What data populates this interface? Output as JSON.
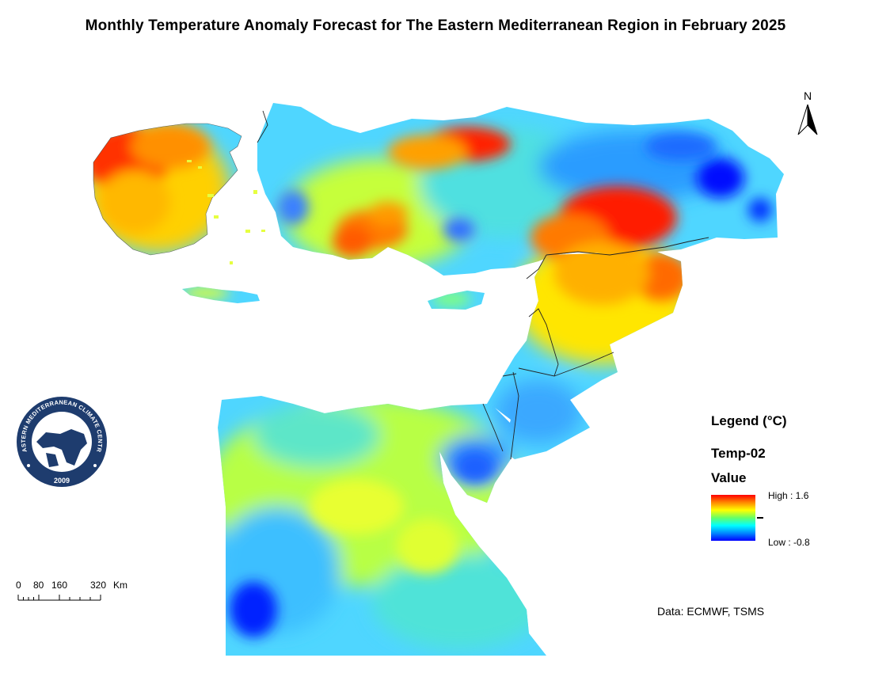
{
  "title": "Monthly Temperature Anomaly Forecast  for The Eastern Mediterranean Region in February 2025",
  "north_arrow": {
    "label": "N",
    "icon": "north-arrow-icon"
  },
  "logo": {
    "text": "EASTERN MEDITERRANEAN CLIMATE CENTRE",
    "year": "2009",
    "icon": "emcc-logo-icon"
  },
  "legend": {
    "heading": "Legend (°C)",
    "layer": "Temp-02",
    "field": "Value",
    "high_label": "High : 1.6",
    "low_label": "Low : -0.8",
    "high_value": 1.6,
    "low_value": -0.8,
    "colors": [
      "#ff0000",
      "#ff8800",
      "#ffff00",
      "#66ff66",
      "#00ffff",
      "#0088ff",
      "#0000ff"
    ]
  },
  "scale_bar": {
    "ticks": [
      "0",
      "80",
      "160",
      "320"
    ],
    "unit": "Km"
  },
  "credit": "Data: ECMWF, TSMS"
}
